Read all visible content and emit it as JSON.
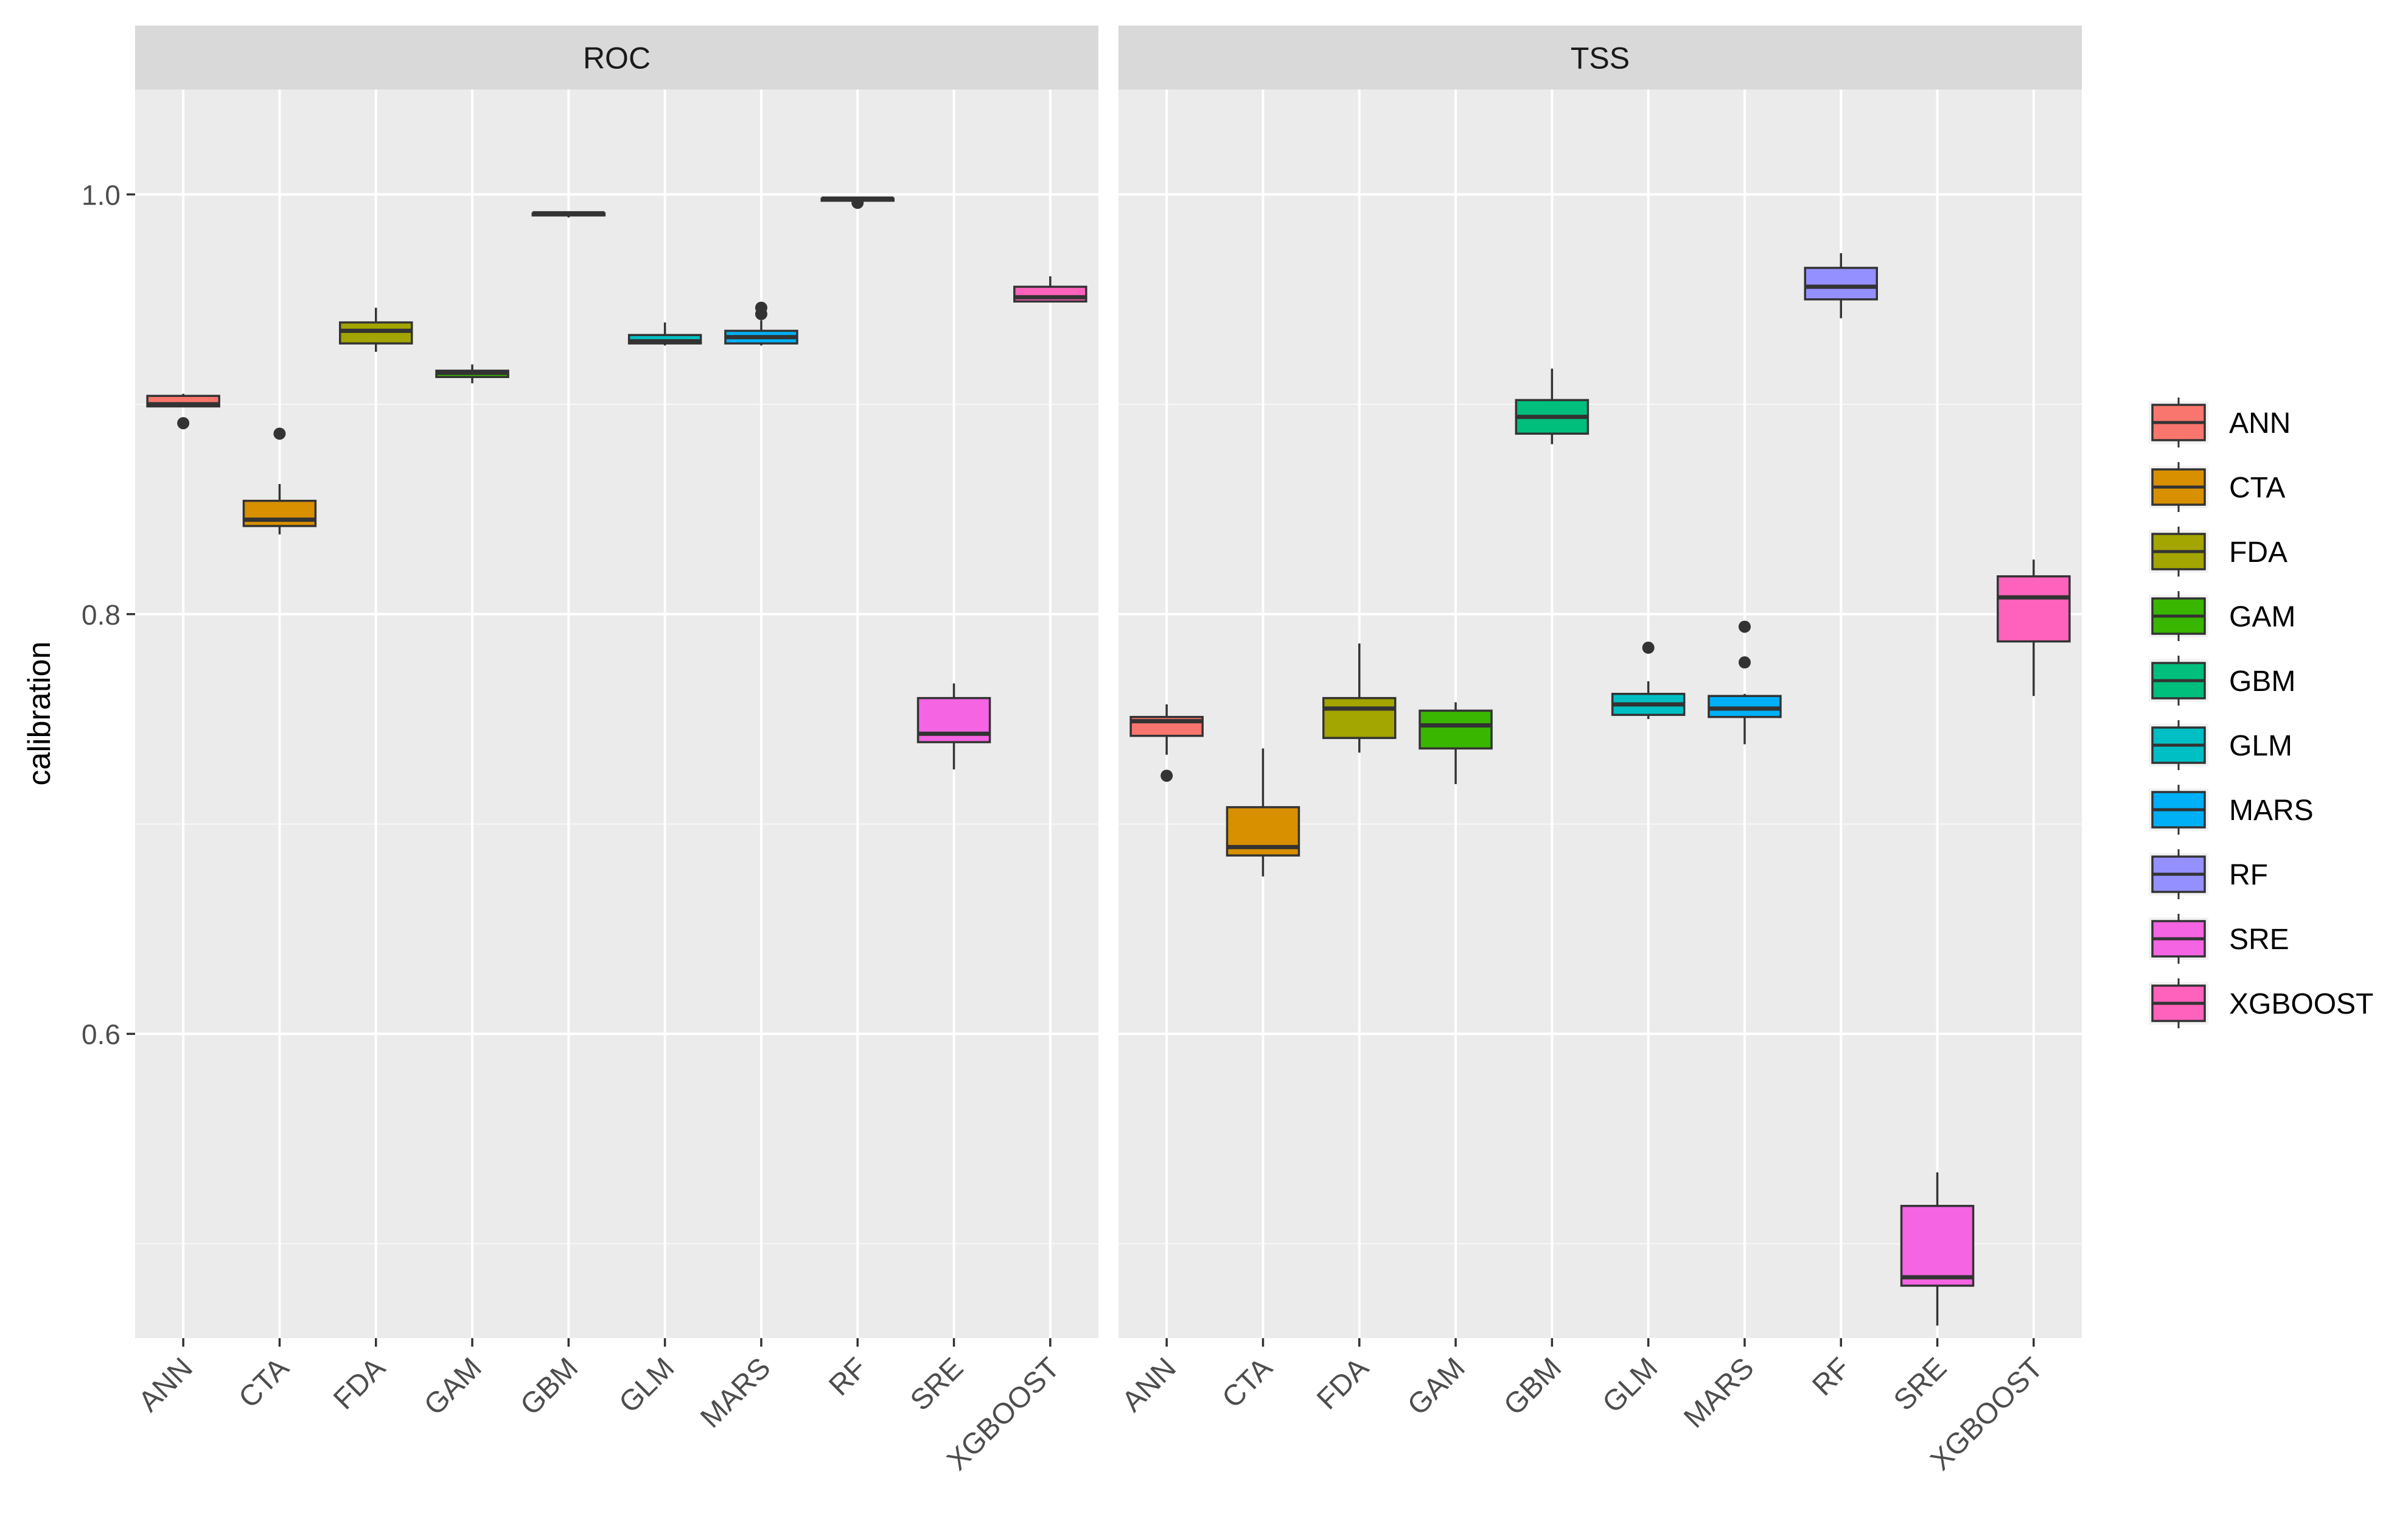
{
  "chart_data": {
    "type": "boxplot",
    "ylabel": "calibration",
    "xlabel": "",
    "ylim": [
      0.455,
      1.05
    ],
    "yticks": [
      0.6,
      0.8,
      1.0
    ],
    "yticklabels": [
      "0.6",
      "0.8",
      "1.0"
    ],
    "ygrid_minor": [
      0.5,
      0.7,
      0.9
    ],
    "grid": true,
    "legend_position": "right",
    "categories": [
      "ANN",
      "CTA",
      "FDA",
      "GAM",
      "GBM",
      "GLM",
      "MARS",
      "RF",
      "SRE",
      "XGBOOST"
    ],
    "colors": [
      "#F8766D",
      "#D89000",
      "#A3A500",
      "#39B600",
      "#00BF7D",
      "#00BFC4",
      "#00B0F6",
      "#9590FF",
      "#F564E3",
      "#FF62BC"
    ],
    "panels": [
      {
        "title": "ROC",
        "boxes": [
          {
            "category": "ANN",
            "whisker_low": 0.899,
            "q1": 0.899,
            "median": 0.9,
            "q3": 0.904,
            "whisker_high": 0.905,
            "outliers": [
              0.891
            ]
          },
          {
            "category": "CTA",
            "whisker_low": 0.838,
            "q1": 0.842,
            "median": 0.845,
            "q3": 0.854,
            "whisker_high": 0.862,
            "outliers": [
              0.886
            ]
          },
          {
            "category": "FDA",
            "whisker_low": 0.925,
            "q1": 0.929,
            "median": 0.935,
            "q3": 0.939,
            "whisker_high": 0.946,
            "outliers": []
          },
          {
            "category": "GAM",
            "whisker_low": 0.91,
            "q1": 0.913,
            "median": 0.915,
            "q3": 0.916,
            "whisker_high": 0.919,
            "outliers": []
          },
          {
            "category": "GBM",
            "whisker_low": 0.989,
            "q1": 0.99,
            "median": 0.991,
            "q3": 0.991,
            "whisker_high": 0.992,
            "outliers": []
          },
          {
            "category": "GLM",
            "whisker_low": 0.928,
            "q1": 0.929,
            "median": 0.93,
            "q3": 0.933,
            "whisker_high": 0.939,
            "outliers": []
          },
          {
            "category": "MARS",
            "whisker_low": 0.928,
            "q1": 0.929,
            "median": 0.932,
            "q3": 0.935,
            "whisker_high": 0.94,
            "outliers": [
              0.943,
              0.946
            ]
          },
          {
            "category": "RF",
            "whisker_low": 0.997,
            "q1": 0.997,
            "median": 0.998,
            "q3": 0.998,
            "whisker_high": 0.999,
            "outliers": [
              0.996
            ]
          },
          {
            "category": "SRE",
            "whisker_low": 0.726,
            "q1": 0.739,
            "median": 0.743,
            "q3": 0.76,
            "whisker_high": 0.767,
            "outliers": []
          },
          {
            "category": "XGBOOST",
            "whisker_low": 0.949,
            "q1": 0.949,
            "median": 0.951,
            "q3": 0.956,
            "whisker_high": 0.961,
            "outliers": []
          }
        ]
      },
      {
        "title": "TSS",
        "boxes": [
          {
            "category": "ANN",
            "whisker_low": 0.733,
            "q1": 0.742,
            "median": 0.749,
            "q3": 0.751,
            "whisker_high": 0.757,
            "outliers": [
              0.723
            ]
          },
          {
            "category": "CTA",
            "whisker_low": 0.675,
            "q1": 0.685,
            "median": 0.689,
            "q3": 0.708,
            "whisker_high": 0.736,
            "outliers": []
          },
          {
            "category": "FDA",
            "whisker_low": 0.734,
            "q1": 0.741,
            "median": 0.755,
            "q3": 0.76,
            "whisker_high": 0.786,
            "outliers": []
          },
          {
            "category": "GAM",
            "whisker_low": 0.719,
            "q1": 0.736,
            "median": 0.747,
            "q3": 0.754,
            "whisker_high": 0.758,
            "outliers": []
          },
          {
            "category": "GBM",
            "whisker_low": 0.881,
            "q1": 0.886,
            "median": 0.894,
            "q3": 0.902,
            "whisker_high": 0.917,
            "outliers": []
          },
          {
            "category": "GLM",
            "whisker_low": 0.75,
            "q1": 0.752,
            "median": 0.757,
            "q3": 0.762,
            "whisker_high": 0.768,
            "outliers": [
              0.784
            ]
          },
          {
            "category": "MARS",
            "whisker_low": 0.738,
            "q1": 0.751,
            "median": 0.755,
            "q3": 0.761,
            "whisker_high": 0.762,
            "outliers": [
              0.777,
              0.794
            ]
          },
          {
            "category": "RF",
            "whisker_low": 0.941,
            "q1": 0.95,
            "median": 0.956,
            "q3": 0.965,
            "whisker_high": 0.972,
            "outliers": []
          },
          {
            "category": "SRE",
            "whisker_low": 0.461,
            "q1": 0.48,
            "median": 0.484,
            "q3": 0.518,
            "whisker_high": 0.534,
            "outliers": []
          },
          {
            "category": "XGBOOST",
            "whisker_low": 0.761,
            "q1": 0.787,
            "median": 0.808,
            "q3": 0.818,
            "whisker_high": 0.826,
            "outliers": []
          }
        ]
      }
    ],
    "legend": [
      {
        "label": "ANN",
        "color": "#F8766D"
      },
      {
        "label": "CTA",
        "color": "#D89000"
      },
      {
        "label": "FDA",
        "color": "#A3A500"
      },
      {
        "label": "GAM",
        "color": "#39B600"
      },
      {
        "label": "GBM",
        "color": "#00BF7D"
      },
      {
        "label": "GLM",
        "color": "#00BFC4"
      },
      {
        "label": "MARS",
        "color": "#00B0F6"
      },
      {
        "label": "RF",
        "color": "#9590FF"
      },
      {
        "label": "SRE",
        "color": "#F564E3"
      },
      {
        "label": "XGBOOST",
        "color": "#FF62BC"
      }
    ]
  }
}
